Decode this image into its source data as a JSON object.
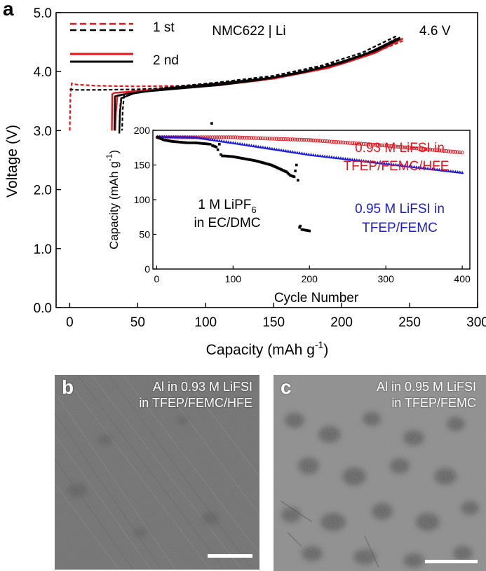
{
  "figure": {
    "panel_a_letter": "a",
    "panel_b_letter": "b",
    "panel_c_letter": "c"
  },
  "chart_data": [
    {
      "id": "main",
      "type": "line",
      "title": "NMC622 | Li",
      "annotation": "4.6 V",
      "xlabel": "Capacity (mAh g",
      "xlabel_sup": "-1",
      "xlabel_close": ")",
      "ylabel": "Voltage (V)",
      "xlim": [
        -10,
        300
      ],
      "ylim": [
        0,
        5
      ],
      "xticks": [
        0,
        50,
        100,
        150,
        200,
        250,
        300
      ],
      "yticks": [
        0.0,
        1.0,
        2.0,
        3.0,
        4.0,
        5.0
      ],
      "ytick_labels": [
        "0.0",
        "1.0",
        "2.0",
        "3.0",
        "4.0",
        "5.0"
      ],
      "legend": {
        "position": "top-left",
        "entries": [
          {
            "label": "1 st",
            "style": "dashed",
            "colors": [
              "#e8141c",
              "#000000"
            ]
          },
          {
            "label": "2 nd",
            "style": "solid",
            "colors": [
              "#e8141c",
              "#000000"
            ]
          }
        ]
      },
      "series": [
        {
          "name": "1st charge (red)",
          "color": "#e8141c",
          "style": "dashed",
          "points": [
            [
              0,
              3.0
            ],
            [
              0.5,
              3.6
            ],
            [
              1.5,
              3.8
            ],
            [
              5,
              3.78
            ],
            [
              20,
              3.76
            ],
            [
              50,
              3.75
            ],
            [
              80,
              3.76
            ],
            [
              110,
              3.79
            ],
            [
              140,
              3.86
            ],
            [
              170,
              3.98
            ],
            [
              200,
              4.14
            ],
            [
              225,
              4.33
            ],
            [
              245,
              4.52
            ]
          ]
        },
        {
          "name": "1st discharge (red)",
          "color": "#e8141c",
          "style": "dashed",
          "points": [
            [
              245,
              4.56
            ],
            [
              220,
              4.3
            ],
            [
              190,
              4.08
            ],
            [
              150,
              3.9
            ],
            [
              110,
              3.8
            ],
            [
              70,
              3.73
            ],
            [
              45,
              3.67
            ],
            [
              38,
              3.6
            ],
            [
              37,
              3.4
            ],
            [
              36.5,
              3.05
            ]
          ]
        },
        {
          "name": "1st charge (black)",
          "color": "#000000",
          "style": "dashed",
          "points": [
            [
              0,
              3.7
            ],
            [
              5,
              3.69
            ],
            [
              20,
              3.69
            ],
            [
              50,
              3.7
            ],
            [
              80,
              3.73
            ],
            [
              110,
              3.78
            ],
            [
              140,
              3.87
            ],
            [
              170,
              4.0
            ],
            [
              200,
              4.17
            ],
            [
              225,
              4.37
            ],
            [
              240,
              4.56
            ]
          ]
        },
        {
          "name": "1st discharge (black)",
          "color": "#000000",
          "style": "dashed",
          "points": [
            [
              240,
              4.6
            ],
            [
              215,
              4.32
            ],
            [
              185,
              4.1
            ],
            [
              150,
              3.93
            ],
            [
              110,
              3.82
            ],
            [
              75,
              3.74
            ],
            [
              45,
              3.66
            ],
            [
              40,
              3.6
            ],
            [
              39,
              3.35
            ],
            [
              38.5,
              3.0
            ]
          ]
        },
        {
          "name": "2nd charge (red)",
          "color": "#e8141c",
          "style": "solid",
          "points": [
            [
              31,
              3.0
            ],
            [
              31.3,
              3.62
            ],
            [
              33,
              3.64
            ],
            [
              50,
              3.67
            ],
            [
              80,
              3.72
            ],
            [
              110,
              3.77
            ],
            [
              140,
              3.85
            ],
            [
              170,
              3.97
            ],
            [
              200,
              4.13
            ],
            [
              225,
              4.32
            ],
            [
              245,
              4.56
            ]
          ]
        },
        {
          "name": "2nd discharge (red)",
          "color": "#e8141c",
          "style": "solid",
          "points": [
            [
              245,
              4.56
            ],
            [
              220,
              4.28
            ],
            [
              190,
              4.06
            ],
            [
              150,
              3.88
            ],
            [
              110,
              3.78
            ],
            [
              70,
              3.71
            ],
            [
              45,
              3.65
            ],
            [
              35,
              3.58
            ],
            [
              34,
              3.3
            ],
            [
              33.5,
              3.0
            ]
          ]
        },
        {
          "name": "2nd charge (black)",
          "color": "#000000",
          "style": "solid",
          "points": [
            [
              33,
              3.0
            ],
            [
              33.3,
              3.58
            ],
            [
              36,
              3.6
            ],
            [
              50,
              3.65
            ],
            [
              80,
              3.71
            ],
            [
              110,
              3.77
            ],
            [
              140,
              3.86
            ],
            [
              170,
              3.98
            ],
            [
              200,
              4.15
            ],
            [
              225,
              4.35
            ],
            [
              243,
              4.56
            ]
          ]
        },
        {
          "name": "2nd discharge (black)",
          "color": "#000000",
          "style": "solid",
          "points": [
            [
              243,
              4.58
            ],
            [
              218,
              4.3
            ],
            [
              188,
              4.08
            ],
            [
              150,
              3.9
            ],
            [
              110,
              3.8
            ],
            [
              72,
              3.72
            ],
            [
              47,
              3.63
            ],
            [
              38,
              3.55
            ],
            [
              37,
              3.3
            ],
            [
              36.5,
              2.95
            ]
          ]
        }
      ]
    },
    {
      "id": "inset",
      "type": "scatter",
      "xlabel": "Cycle Number",
      "ylabel": "Capacity (mAh g",
      "ylabel_sup": "-1",
      "ylabel_close": ")",
      "xlim": [
        -5,
        410
      ],
      "ylim": [
        0,
        200
      ],
      "xticks": [
        0,
        100,
        200,
        300,
        400
      ],
      "yticks": [
        0,
        50,
        100,
        150,
        200
      ],
      "labels": {
        "series_hfe_line1": "0.93 M LiFSI in",
        "series_hfe_line2": "TFEP/FEMC/HFE",
        "series_femc_line1": "0.95 M LiFSI in",
        "series_femc_line2": "TFEP/FEMC",
        "series_lipf6_line1": "1 M LiPF",
        "series_lipf6_sub": "6",
        "series_lipf6_line2": "in EC/DMC"
      },
      "series": [
        {
          "name": "0.93 M LiFSI in TFEP/FEMC/HFE",
          "color": "#e8141c",
          "marker": "circle",
          "x_range": [
            1,
            400
          ],
          "y_points": [
            [
              1,
              190
            ],
            [
              100,
              190
            ],
            [
              200,
              186
            ],
            [
              300,
              178
            ],
            [
              400,
              168
            ]
          ]
        },
        {
          "name": "0.95 M LiFSI in TFEP/FEMC",
          "color": "#1c1cd6",
          "marker": "triangle",
          "x_range": [
            1,
            400
          ],
          "y_points": [
            [
              1,
              191
            ],
            [
              50,
              190
            ],
            [
              100,
              182
            ],
            [
              200,
              165
            ],
            [
              300,
              152
            ],
            [
              400,
              139
            ]
          ]
        },
        {
          "name": "1 M LiPF6 in EC/DMC",
          "color": "#000000",
          "marker": "square",
          "points": [
            [
              1,
              190
            ],
            [
              10,
              186
            ],
            [
              20,
              184
            ],
            [
              30,
              183
            ],
            [
              40,
              182
            ],
            [
              50,
              182
            ],
            [
              60,
              181
            ],
            [
              70,
              180
            ],
            [
              72,
              210
            ],
            [
              73,
              178
            ],
            [
              78,
              176
            ],
            [
              80,
              172
            ],
            [
              82,
              180
            ],
            [
              84,
              165
            ],
            [
              86,
              163
            ],
            [
              90,
              163
            ],
            [
              100,
              162
            ],
            [
              110,
              160
            ],
            [
              120,
              158
            ],
            [
              130,
              156
            ],
            [
              140,
              153
            ],
            [
              150,
              150
            ],
            [
              160,
              145
            ],
            [
              170,
              140
            ],
            [
              175,
              135
            ],
            [
              180,
              133
            ],
            [
              183,
              150
            ],
            [
              185,
              128
            ],
            [
              187,
              60
            ],
            [
              188,
              62
            ],
            [
              190,
              57
            ],
            [
              195,
              56
            ],
            [
              200,
              55
            ]
          ]
        }
      ]
    }
  ],
  "micrographs": [
    {
      "id": "b",
      "caption_line1": "Al in 0.93 M LiFSI",
      "caption_line2": "in TFEP/FEMC/HFE"
    },
    {
      "id": "c",
      "caption_line1": "Al in 0.95 M LiFSI",
      "caption_line2": "in TFEP/FEMC"
    }
  ]
}
